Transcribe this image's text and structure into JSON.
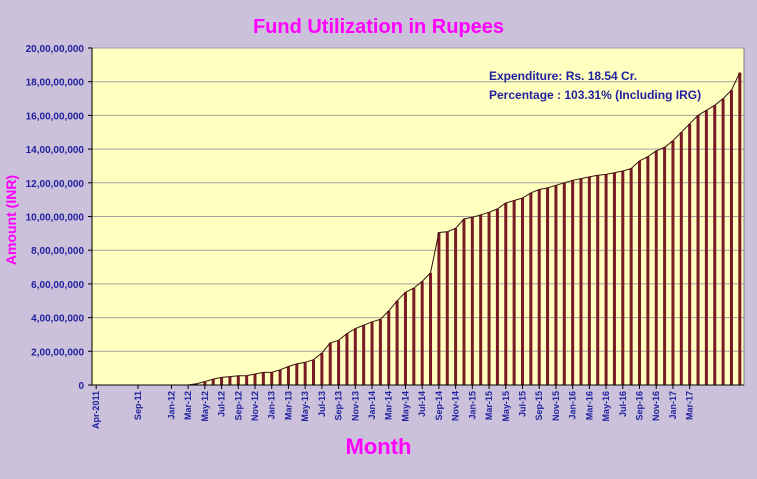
{
  "chart_data": {
    "type": "bar",
    "title": "Fund Utilization in Rupees",
    "xlabel": "Month",
    "ylabel": "Amount (INR)",
    "ylim": [
      0,
      200000000
    ],
    "yticks": [
      "0",
      "2,00,00,000",
      "4,00,00,000",
      "6,00,00,000",
      "8,00,00,000",
      "10,00,00,000",
      "12,00,00,000",
      "14,00,00,000",
      "16,00,00,000",
      "18,00,00,000",
      "20,00,00,000"
    ],
    "grid": true,
    "tick_labels": [
      "Apr-2011",
      "Sep-11",
      "Jan-12",
      "Mar-12",
      "May-12",
      "Jul-12",
      "Sep-12",
      "Nov-12",
      "Jan-13",
      "Mar-13",
      "May-13",
      "Jul-13",
      "Sep-13",
      "Nov-13",
      "Jan-14",
      "Mar-14",
      "May-14",
      "Jul-14",
      "Sep-14",
      "Nov-14",
      "Jan-15",
      "Mar-15",
      "May-15",
      "Jul-15",
      "Sep-15",
      "Nov-15",
      "Jan-16",
      "Mar-16",
      "May-16",
      "Jul-16",
      "Sep-16",
      "Nov-16",
      "Jan-17",
      "Mar-17"
    ],
    "tick_positions": [
      0,
      5,
      9,
      11,
      13,
      15,
      17,
      19,
      21,
      23,
      25,
      27,
      29,
      31,
      33,
      35,
      37,
      39,
      41,
      43,
      45,
      47,
      49,
      51,
      53,
      55,
      57,
      59,
      61,
      63,
      65,
      67,
      69,
      71
    ],
    "values": [
      0,
      0,
      0,
      0,
      0,
      0,
      0,
      0,
      0,
      0,
      0,
      0,
      800000,
      2000000,
      3500000,
      4500000,
      5000000,
      5500000,
      5500000,
      6500000,
      7500000,
      7500000,
      9000000,
      11000000,
      12500000,
      13500000,
      15000000,
      19000000,
      25000000,
      26500000,
      30500000,
      33500000,
      35500000,
      37500000,
      39000000,
      44000000,
      50000000,
      55000000,
      57500000,
      61500000,
      66500000,
      90500000,
      91000000,
      93000000,
      98500000,
      99500000,
      101000000,
      102500000,
      104500000,
      108000000,
      109500000,
      111000000,
      114000000,
      116000000,
      117000000,
      118500000,
      120000000,
      121500000,
      122500000,
      123500000,
      124500000,
      125000000,
      126000000,
      127000000,
      128500000,
      133000000,
      135500000,
      139000000,
      141000000,
      145000000,
      150000000,
      155000000,
      160000000,
      163000000,
      166000000,
      170000000,
      175000000,
      185400000
    ]
  },
  "annotations": {
    "expenditure_label": "Expenditure:",
    "expenditure_value": "Rs. 18.54  Cr.",
    "percentage_label": "Percentage :",
    "percentage_value": "103.31%  (Including IRG)"
  },
  "colors": {
    "background": "#ccc1da",
    "plot_area": "#ffffc0",
    "bar_fill": "#7a1a22",
    "bar_highlight": "#ffffff",
    "text_accent": "#ff00ff",
    "axis_text": "#1f1f9f"
  }
}
